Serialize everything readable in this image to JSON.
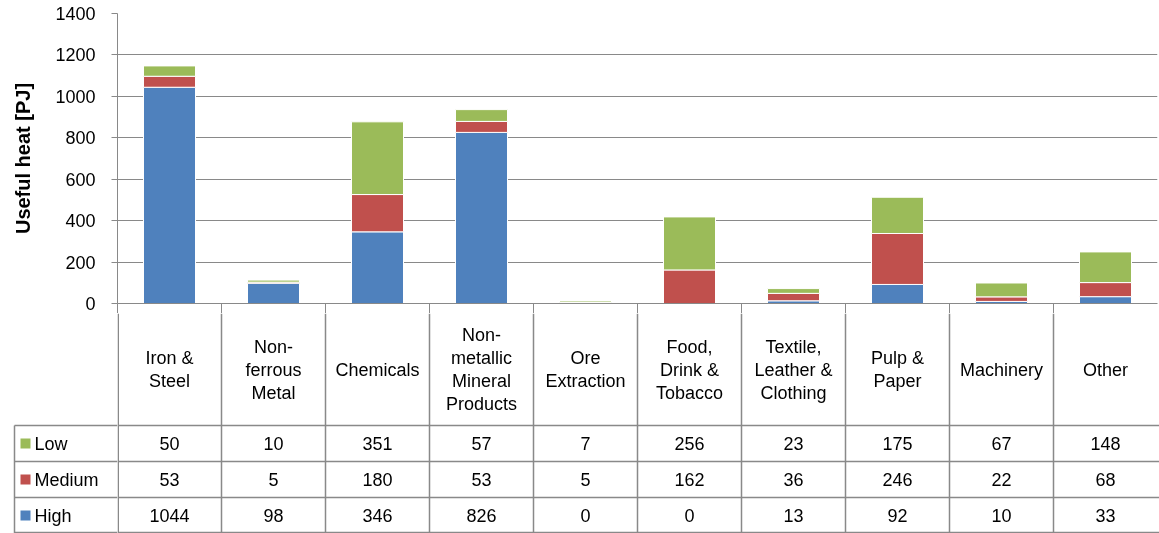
{
  "chart_data": {
    "type": "bar",
    "stacked": true,
    "ylabel": "Useful heat [PJ]",
    "categories": [
      "Iron & Steel",
      "Non-ferrous Metal",
      "Chemicals",
      "Non-metallic Mineral Products",
      "Ore Extraction",
      "Food, Drink & Tobacco",
      "Textile, Leather & Clothing",
      "Pulp & Paper",
      "Machinery",
      "Other"
    ],
    "series": [
      {
        "name": "High",
        "color": "#4f81bd",
        "values": [
          1044,
          98,
          346,
          826,
          0,
          0,
          13,
          92,
          10,
          33
        ]
      },
      {
        "name": "Medium",
        "color": "#c0504d",
        "values": [
          53,
          5,
          180,
          53,
          5,
          162,
          36,
          246,
          22,
          68
        ]
      },
      {
        "name": "Low",
        "color": "#9bbb59",
        "values": [
          50,
          10,
          351,
          57,
          7,
          256,
          23,
          175,
          67,
          148
        ]
      }
    ],
    "ylim": [
      0,
      1400
    ],
    "yticks": [
      0,
      200,
      400,
      600,
      800,
      1000,
      1200,
      1400
    ],
    "grid": "y",
    "legend": "bottom",
    "data_labels": true
  }
}
